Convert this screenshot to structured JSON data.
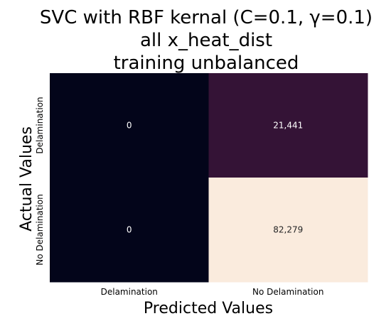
{
  "chart_data": {
    "type": "heatmap",
    "title": [
      "SVC with RBF kernal (C=0.1, γ=0.1)",
      "all x_heat_dist",
      "training unbalanced"
    ],
    "xlabel": "Predicted Values",
    "ylabel": "Actual Values",
    "x_categories": [
      "Delamination",
      "No Delamination"
    ],
    "y_categories": [
      "Delamination",
      "No Delamination"
    ],
    "values": [
      [
        0,
        21441
      ],
      [
        0,
        82279
      ]
    ],
    "cell_labels": [
      [
        "0",
        "21,441"
      ],
      [
        "0",
        "82,279"
      ]
    ],
    "colormap": "rocket",
    "colorbar": false,
    "colors": {
      "low": "#03051a",
      "mid": "#611f4f",
      "high": "#faebdd",
      "text_dark": "#ffffff",
      "text_light": "#262626"
    }
  }
}
